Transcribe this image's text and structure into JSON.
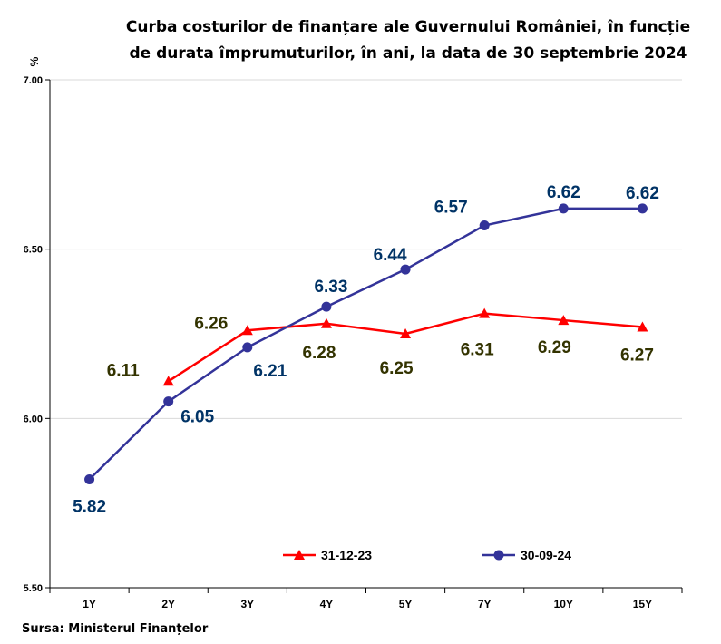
{
  "chart_data": {
    "type": "line",
    "title_lines": [
      "Curba costurilor de finanțare ale Guvernului României, în funcție",
      "de durata împrumuturilor, în ani, la data de 30 septembrie 2024"
    ],
    "ylabel": "%",
    "ylim": [
      5.5,
      7.0
    ],
    "yticks": [
      "5.50",
      "6.00",
      "6.50",
      "7.00"
    ],
    "categories": [
      "1Y",
      "2Y",
      "3Y",
      "4Y",
      "5Y",
      "7Y",
      "10Y",
      "15Y"
    ],
    "grid": "horizontal",
    "legend_position": "bottom-center",
    "series": [
      {
        "name": "31-12-23",
        "color": "#ff0000",
        "marker": "triangle",
        "values": [
          null,
          6.11,
          6.26,
          6.28,
          6.25,
          6.31,
          6.29,
          6.27
        ],
        "labels": [
          "",
          "6.11",
          "6.26",
          "6.28",
          "6.25",
          "6.31",
          "6.29",
          "6.27"
        ],
        "label_color": "#333300"
      },
      {
        "name": "30-09-24",
        "color": "#333399",
        "marker": "circle",
        "values": [
          5.82,
          6.05,
          6.21,
          6.33,
          6.44,
          6.57,
          6.62,
          6.62
        ],
        "labels": [
          "5.82",
          "6.05",
          "6.21",
          "6.33",
          "6.44",
          "6.57",
          "6.62",
          "6.62"
        ],
        "label_color": "#003366"
      }
    ]
  },
  "source": "Sursa: Ministerul Finanțelor"
}
